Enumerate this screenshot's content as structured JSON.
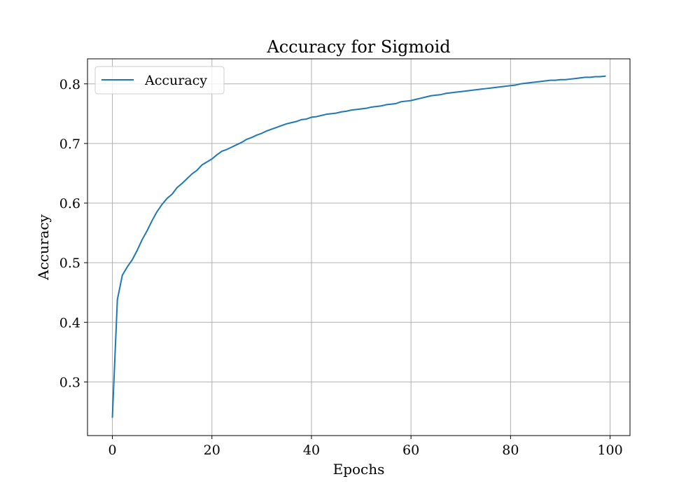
{
  "chart_data": {
    "type": "line",
    "title": "Accuracy for Sigmoid",
    "xlabel": "Epochs",
    "ylabel": "Accuracy",
    "xlim": [
      -5,
      104
    ],
    "ylim": [
      0.21,
      0.842
    ],
    "xticks": [
      0,
      20,
      40,
      60,
      80,
      100
    ],
    "yticks": [
      0.3,
      0.4,
      0.5,
      0.6,
      0.7,
      0.8
    ],
    "xtick_labels": [
      "0",
      "20",
      "40",
      "60",
      "80",
      "100"
    ],
    "ytick_labels": [
      "0.3",
      "0.4",
      "0.5",
      "0.6",
      "0.7",
      "0.8"
    ],
    "grid": true,
    "legend_position": "upper-left",
    "series": [
      {
        "name": "Accuracy",
        "color": "#1f77b4",
        "x": [
          0,
          1,
          2,
          3,
          4,
          5,
          6,
          7,
          8,
          9,
          10,
          11,
          12,
          13,
          14,
          15,
          16,
          17,
          18,
          19,
          20,
          21,
          22,
          23,
          24,
          25,
          26,
          27,
          28,
          29,
          30,
          31,
          32,
          33,
          34,
          35,
          36,
          37,
          38,
          39,
          40,
          41,
          42,
          43,
          44,
          45,
          46,
          47,
          48,
          49,
          50,
          51,
          52,
          53,
          54,
          55,
          56,
          57,
          58,
          59,
          60,
          61,
          62,
          63,
          64,
          65,
          66,
          67,
          68,
          69,
          70,
          71,
          72,
          73,
          74,
          75,
          76,
          77,
          78,
          79,
          80,
          81,
          82,
          83,
          84,
          85,
          86,
          87,
          88,
          89,
          90,
          91,
          92,
          93,
          94,
          95,
          96,
          97,
          98,
          99
        ],
        "values": [
          0.241,
          0.438,
          0.479,
          0.493,
          0.505,
          0.521,
          0.539,
          0.554,
          0.571,
          0.586,
          0.598,
          0.608,
          0.615,
          0.626,
          0.633,
          0.641,
          0.649,
          0.655,
          0.664,
          0.669,
          0.674,
          0.681,
          0.687,
          0.69,
          0.694,
          0.698,
          0.702,
          0.707,
          0.71,
          0.714,
          0.717,
          0.721,
          0.724,
          0.727,
          0.73,
          0.733,
          0.735,
          0.737,
          0.74,
          0.741,
          0.744,
          0.745,
          0.747,
          0.749,
          0.75,
          0.751,
          0.753,
          0.754,
          0.756,
          0.757,
          0.758,
          0.759,
          0.761,
          0.762,
          0.763,
          0.765,
          0.766,
          0.767,
          0.77,
          0.771,
          0.772,
          0.774,
          0.776,
          0.778,
          0.78,
          0.781,
          0.782,
          0.784,
          0.785,
          0.786,
          0.787,
          0.788,
          0.789,
          0.79,
          0.791,
          0.792,
          0.793,
          0.794,
          0.795,
          0.796,
          0.797,
          0.798,
          0.8,
          0.801,
          0.802,
          0.803,
          0.804,
          0.805,
          0.806,
          0.806,
          0.807,
          0.807,
          0.808,
          0.809,
          0.81,
          0.811,
          0.811,
          0.812,
          0.812,
          0.813
        ]
      }
    ]
  }
}
